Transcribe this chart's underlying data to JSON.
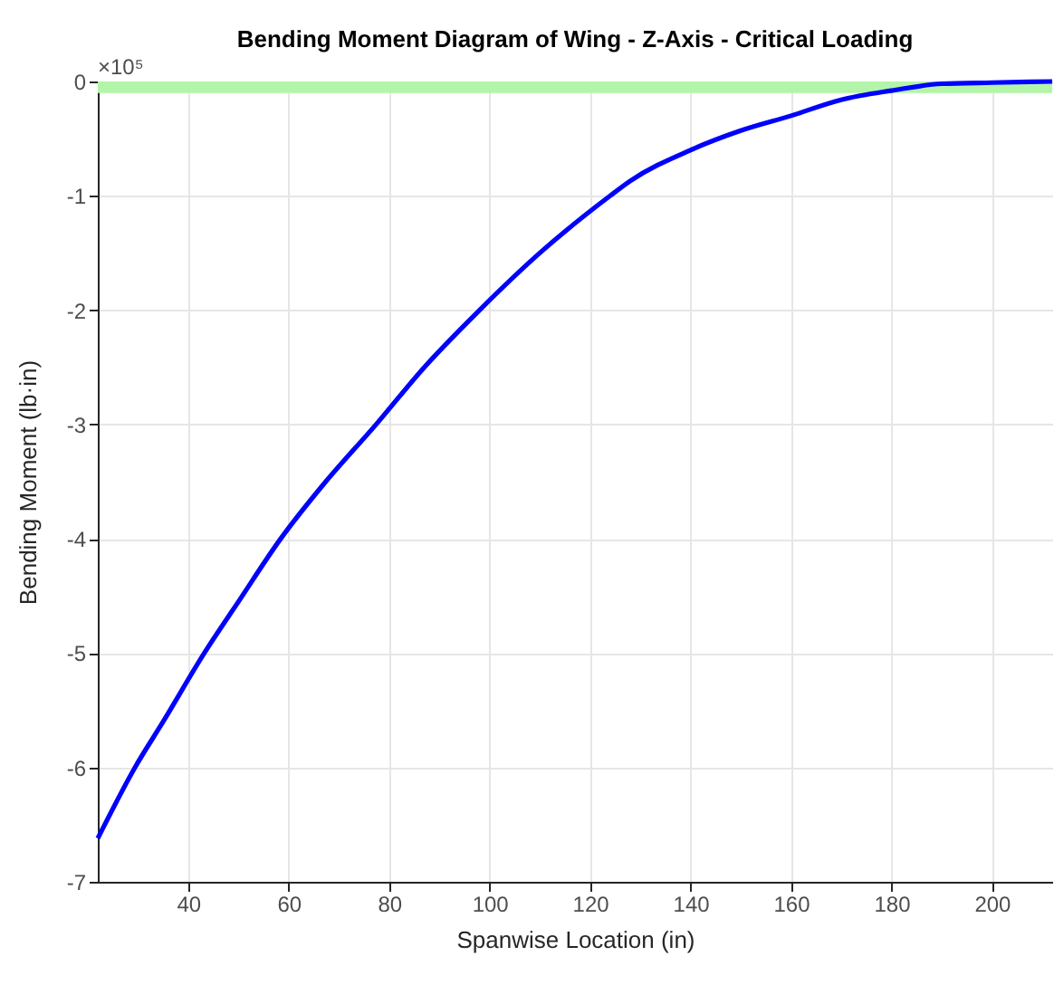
{
  "chart_data": {
    "type": "line",
    "title": "Bending Moment Diagram of Wing - Z-Axis - Critical Loading",
    "xlabel": "Spanwise Location (in)",
    "ylabel": "Bending Moment (lb·in)",
    "annotations": [
      "×10⁵"
    ],
    "x": [
      22,
      29.4,
      35,
      43.2,
      50,
      58.4,
      67,
      77.4,
      87,
      98,
      110,
      124,
      128,
      140,
      150,
      160,
      170,
      180,
      190,
      200,
      212
    ],
    "series": [
      {
        "color": "#0000ff",
        "values": [
          -6.62,
          -6,
          -5.6,
          -5,
          -4.55,
          -4,
          -3.52,
          -3,
          -2.5,
          -2,
          -1.5,
          -1,
          -0.87,
          -0.6,
          -0.43,
          -0.3,
          -0.16,
          -0.08,
          -0.02,
          -0.01,
          0
        ]
      }
    ],
    "xlim": [
      22,
      212
    ],
    "xticks": [
      40,
      60,
      80,
      100,
      120,
      140,
      160,
      180,
      200
    ],
    "ylim": [
      -7,
      0
    ],
    "yticks": [
      -7,
      -6,
      -5,
      -4,
      -3,
      -2,
      -1,
      0
    ],
    "bands": [
      {
        "axis": "y",
        "from": -0.1,
        "to": 0,
        "color": "#b3f5a8"
      }
    ],
    "grid": true,
    "legend": false,
    "marker": "none",
    "line_style": "solid"
  }
}
